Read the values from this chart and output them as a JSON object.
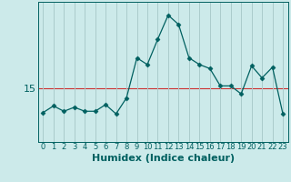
{
  "x": [
    0,
    1,
    2,
    3,
    4,
    5,
    6,
    7,
    8,
    9,
    10,
    11,
    12,
    13,
    14,
    15,
    16,
    17,
    18,
    19,
    20,
    21,
    22,
    23
  ],
  "y": [
    13.2,
    13.7,
    13.3,
    13.6,
    13.3,
    13.3,
    13.8,
    13.1,
    14.3,
    17.3,
    16.8,
    18.7,
    20.5,
    19.8,
    17.3,
    16.8,
    16.5,
    15.2,
    15.2,
    14.6,
    16.7,
    15.8,
    16.6,
    13.1
  ],
  "line_color": "#006060",
  "marker": "D",
  "marker_size": 2.5,
  "background_color": "#cceaea",
  "grid_color": "#aacccc",
  "hline_value": 15,
  "hline_color": "#cc3333",
  "xlabel": "Humidex (Indice chaleur)",
  "xlabel_fontsize": 8,
  "ytick_values": [
    15
  ],
  "ytick_fontsize": 8,
  "xtick_fontsize": 6,
  "ylim_min": 11.0,
  "ylim_max": 21.5,
  "xlim_min": -0.5,
  "xlim_max": 23.5
}
